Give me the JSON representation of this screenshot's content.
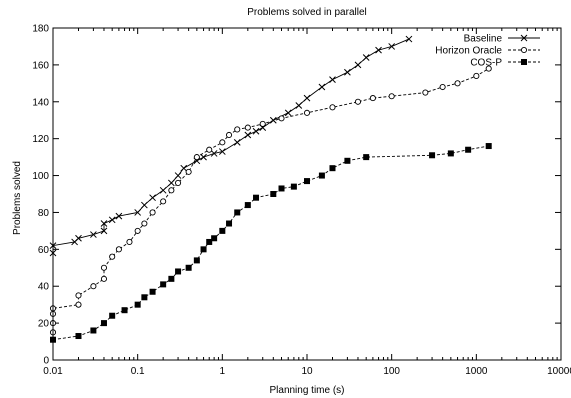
{
  "chart_data": {
    "type": "line",
    "title": "Problems solved in parallel",
    "xlabel": "Planning time (s)",
    "ylabel": "Problems solved",
    "xscale": "log",
    "xlim": [
      0.01,
      10000
    ],
    "ylim": [
      0,
      180
    ],
    "xticks": [
      0.01,
      0.1,
      1,
      10,
      100,
      1000,
      10000
    ],
    "xtick_labels": [
      "0.01",
      "0.1",
      "1",
      "10",
      "100",
      "1000",
      "10000"
    ],
    "yticks": [
      0,
      20,
      40,
      60,
      80,
      100,
      120,
      140,
      160,
      180
    ],
    "ytick_labels": [
      "0",
      "20",
      "40",
      "60",
      "80",
      "100",
      "120",
      "140",
      "160",
      "180"
    ],
    "grid": false,
    "legend_position": "top-right",
    "series": [
      {
        "name": "Baseline",
        "marker": "x",
        "line": "solid",
        "points": [
          [
            0.01,
            58
          ],
          [
            0.01,
            62
          ],
          [
            0.018,
            64
          ],
          [
            0.02,
            66
          ],
          [
            0.03,
            68
          ],
          [
            0.04,
            70
          ],
          [
            0.04,
            74
          ],
          [
            0.05,
            76
          ],
          [
            0.06,
            78
          ],
          [
            0.1,
            80
          ],
          [
            0.12,
            84
          ],
          [
            0.15,
            88
          ],
          [
            0.2,
            92
          ],
          [
            0.25,
            96
          ],
          [
            0.3,
            100
          ],
          [
            0.35,
            104
          ],
          [
            0.5,
            108
          ],
          [
            0.6,
            110
          ],
          [
            0.8,
            112
          ],
          [
            1.0,
            113
          ],
          [
            1.5,
            118
          ],
          [
            2.0,
            122
          ],
          [
            2.5,
            124
          ],
          [
            3.0,
            126
          ],
          [
            4.0,
            130
          ],
          [
            6.0,
            134
          ],
          [
            8.0,
            138
          ],
          [
            10.0,
            142
          ],
          [
            15.0,
            148
          ],
          [
            20.0,
            152
          ],
          [
            30.0,
            156
          ],
          [
            40.0,
            160
          ],
          [
            50.0,
            164
          ],
          [
            70.0,
            168
          ],
          [
            100.0,
            170
          ],
          [
            160.0,
            174
          ]
        ]
      },
      {
        "name": "Horizon Oracle",
        "marker": "circle",
        "line": "dashed",
        "points": [
          [
            0.01,
            15
          ],
          [
            0.01,
            20
          ],
          [
            0.01,
            25
          ],
          [
            0.01,
            28
          ],
          [
            0.02,
            30
          ],
          [
            0.02,
            35
          ],
          [
            0.03,
            40
          ],
          [
            0.04,
            44
          ],
          [
            0.04,
            50
          ],
          [
            0.05,
            56
          ],
          [
            0.06,
            60
          ],
          [
            0.08,
            64
          ],
          [
            0.1,
            70
          ],
          [
            0.12,
            74
          ],
          [
            0.15,
            80
          ],
          [
            0.2,
            86
          ],
          [
            0.25,
            92
          ],
          [
            0.3,
            96
          ],
          [
            0.4,
            102
          ],
          [
            0.5,
            110
          ],
          [
            0.7,
            114
          ],
          [
            1.0,
            118
          ],
          [
            1.2,
            122
          ],
          [
            1.5,
            125
          ],
          [
            2.0,
            126
          ],
          [
            3.0,
            128
          ],
          [
            5.0,
            131
          ],
          [
            10.0,
            134
          ],
          [
            20.0,
            137
          ],
          [
            40.0,
            140
          ],
          [
            60.0,
            142
          ],
          [
            100.0,
            143
          ],
          [
            250.0,
            145
          ],
          [
            400.0,
            148
          ],
          [
            600.0,
            150
          ],
          [
            1000.0,
            154
          ],
          [
            1400.0,
            158
          ]
        ]
      },
      {
        "name": "COS-P",
        "marker": "filled-square",
        "line": "dashed",
        "points": [
          [
            0.01,
            11
          ],
          [
            0.02,
            13
          ],
          [
            0.03,
            16
          ],
          [
            0.04,
            20
          ],
          [
            0.05,
            24
          ],
          [
            0.07,
            27
          ],
          [
            0.1,
            30
          ],
          [
            0.12,
            34
          ],
          [
            0.15,
            37
          ],
          [
            0.2,
            41
          ],
          [
            0.25,
            44
          ],
          [
            0.3,
            48
          ],
          [
            0.4,
            50
          ],
          [
            0.5,
            54
          ],
          [
            0.6,
            60
          ],
          [
            0.7,
            64
          ],
          [
            0.8,
            66
          ],
          [
            1.0,
            70
          ],
          [
            1.2,
            74
          ],
          [
            1.5,
            80
          ],
          [
            2.0,
            84
          ],
          [
            2.5,
            88
          ],
          [
            4.0,
            90
          ],
          [
            5.0,
            93
          ],
          [
            7.0,
            94
          ],
          [
            10.0,
            97
          ],
          [
            15.0,
            100
          ],
          [
            20.0,
            104
          ],
          [
            30.0,
            108
          ],
          [
            50.0,
            110
          ],
          [
            300.0,
            111
          ],
          [
            500.0,
            112
          ],
          [
            800.0,
            114
          ],
          [
            1400.0,
            116
          ]
        ]
      }
    ]
  }
}
